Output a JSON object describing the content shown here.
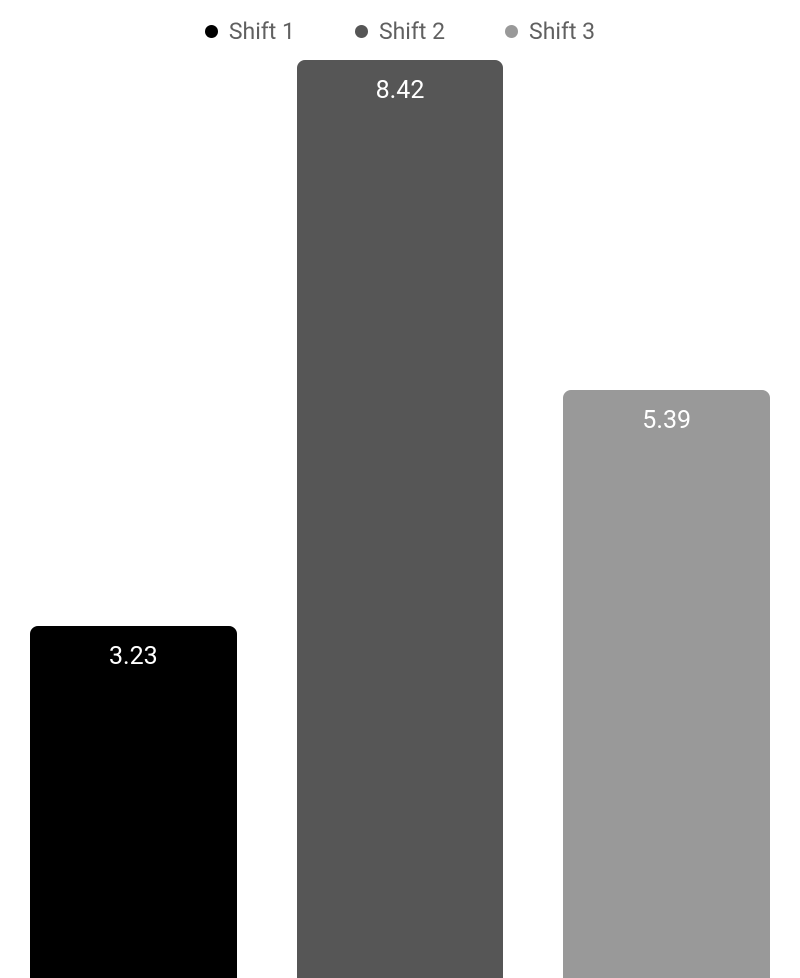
{
  "chart": {
    "type": "bar",
    "background_color": "#ffffff",
    "max_value": 8.42,
    "legend": {
      "font_size": 23,
      "font_color": "#606060",
      "items": [
        {
          "label": "Shift 1",
          "dot_color": "#000000"
        },
        {
          "label": "Shift 2",
          "dot_color": "#565656"
        },
        {
          "label": "Shift 3",
          "dot_color": "#999999"
        }
      ]
    },
    "bars": [
      {
        "value": 3.23,
        "display": "3.23",
        "color": "#000000",
        "value_color": "#ffffff"
      },
      {
        "value": 8.42,
        "display": "8.42",
        "color": "#565656",
        "value_color": "#ffffff"
      },
      {
        "value": 5.39,
        "display": "5.39",
        "color": "#999999",
        "value_color": "#ffffff"
      }
    ],
    "bar_border_radius": 8,
    "value_font_size": 25,
    "chart_area_height": 918
  }
}
